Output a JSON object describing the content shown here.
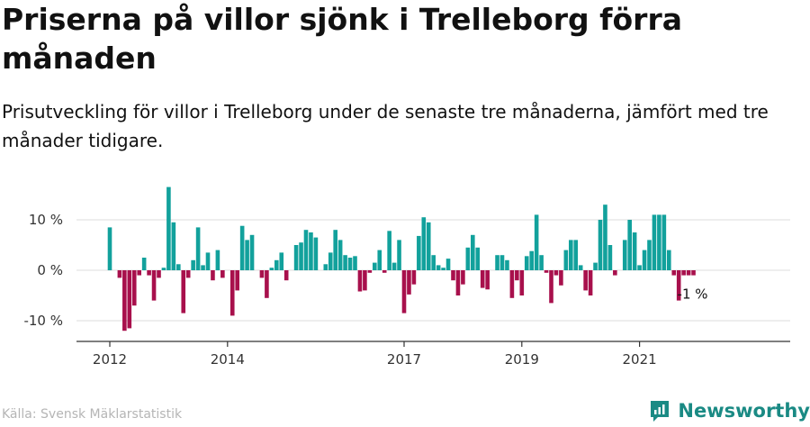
{
  "title": "Priserna på villor sjönk i Trelleborg förra månaden",
  "subtitle": "Prisutveckling för villor i Trelleborg under de senaste tre månaderna, jämfört med tre månader tidigare.",
  "source": "Källa: Svensk Mäklarstatistik",
  "brand": "Newsworthy",
  "colors": {
    "positive": "#12a19c",
    "negative": "#a8104c",
    "grid": "#dddddd",
    "axis": "#333333",
    "brand": "#1a8a84"
  },
  "chart_data": {
    "type": "bar",
    "title": "Priserna på villor sjönk i Trelleborg förra månaden",
    "xlabel": "",
    "ylabel": "",
    "ylim": [
      -14,
      16
    ],
    "yticks": [
      10,
      0,
      -10
    ],
    "ytick_labels": [
      "10 %",
      "0 %",
      "-10 %"
    ],
    "xticks": [
      {
        "label": "2012",
        "index": 0
      },
      {
        "label": "2014",
        "index": 24
      },
      {
        "label": "2017",
        "index": 60
      },
      {
        "label": "2019",
        "index": 84
      },
      {
        "label": "2021",
        "index": 108
      }
    ],
    "start": "2012-01",
    "values": [
      8.5,
      0.0,
      -1.5,
      -12.0,
      -11.5,
      -7.0,
      -1.0,
      2.5,
      -1.0,
      -6.0,
      -1.5,
      0.5,
      16.5,
      9.5,
      1.2,
      -8.5,
      -1.5,
      2.0,
      8.5,
      1.0,
      3.5,
      -2.0,
      4.0,
      -1.5,
      0.0,
      -9.0,
      -4.0,
      8.8,
      6.0,
      7.0,
      0.0,
      -1.5,
      -5.5,
      0.5,
      2.0,
      3.5,
      -2.0,
      0.0,
      5.0,
      5.5,
      8.0,
      7.5,
      6.5,
      0.0,
      1.2,
      3.5,
      8.0,
      6.0,
      3.0,
      2.5,
      2.8,
      -4.2,
      -4.0,
      -0.5,
      1.5,
      4.0,
      -0.5,
      7.8,
      1.5,
      6.0,
      -8.5,
      -4.8,
      -2.8,
      6.8,
      10.5,
      9.5,
      3.0,
      1.0,
      0.5,
      2.3,
      -2.0,
      -5.0,
      -2.8,
      4.5,
      7.0,
      4.5,
      -3.5,
      -3.8,
      0.0,
      3.0,
      3.0,
      2.0,
      -5.5,
      -2.0,
      -5.0,
      2.8,
      3.8,
      11.0,
      3.0,
      -0.5,
      -6.5,
      -1.0,
      -3.0,
      4.0,
      6.0,
      6.0,
      1.0,
      -4.0,
      -5.0,
      1.5,
      10.0,
      13.0,
      5.0,
      -1.0,
      0.0,
      6.0,
      10.0,
      7.5,
      1.0,
      4.0,
      6.0,
      11.0,
      11.0,
      11.0,
      4.0,
      -1.0,
      -6.0,
      -1.0,
      -1.0,
      -1.0
    ],
    "annotation": "-1 %"
  }
}
